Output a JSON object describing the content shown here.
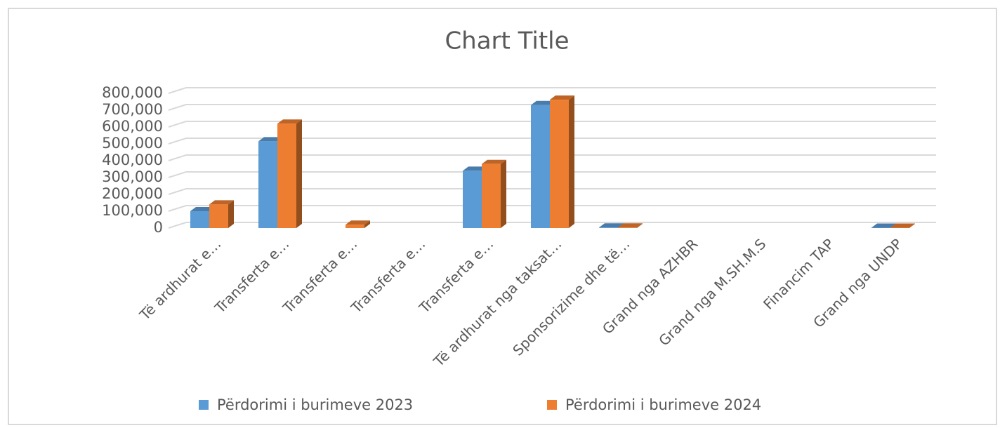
{
  "chart_data": {
    "type": "bar3d",
    "title": "Chart Title",
    "categories": [
      "Të ardhurat e…",
      "Transferta e…",
      "Transferta e…",
      "Transferta e…",
      "Transferta e…",
      "Të ardhurat nga taksat…",
      "Sponsorizime dhe të…",
      "Grand nga AZHBR",
      "Grand nga M.SH.M.S",
      "Financim TAP",
      "Grand nga UNDP"
    ],
    "series": [
      {
        "name": "Përdorimi i burimeve 2023",
        "color": "#5b9bd5",
        "values": [
          100000,
          515000,
          null,
          null,
          340000,
          730000,
          3000,
          null,
          null,
          null,
          2000
        ]
      },
      {
        "name": "Përdorimi i burimeve 2024",
        "color": "#ed7d31",
        "values": [
          140000,
          620000,
          20000,
          null,
          380000,
          762000,
          3000,
          null,
          null,
          null,
          2000
        ]
      }
    ],
    "ylim": [
      0,
      800000
    ],
    "yticks": [
      0,
      {
        "value": 100000,
        "label": "100,000"
      },
      {
        "value": 200000,
        "label": "200,000"
      },
      {
        "value": 300000,
        "label": "300,000"
      },
      {
        "value": 400000,
        "label": "400,000"
      },
      {
        "value": 500000,
        "label": "500,000"
      },
      {
        "value": 600000,
        "label": "600,000"
      },
      {
        "value": 700000,
        "label": "700,000"
      },
      {
        "value": 800000,
        "label": "800,000"
      }
    ],
    "grid": true,
    "legend": "bottom"
  }
}
